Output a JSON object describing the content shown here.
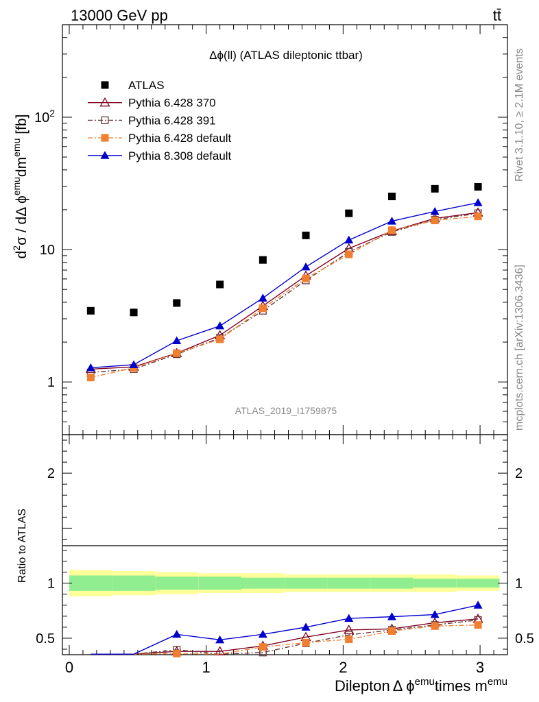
{
  "header": {
    "energy_label": "13000 GeV pp",
    "process_label": "tt̄"
  },
  "side_labels": {
    "rivet": "Rivet 3.1.10, ≥ 2.1M events",
    "mcplots": "mcplots.cern.ch [arXiv:1306.3436]"
  },
  "chart_data": [
    {
      "type": "scatter",
      "title": "Δϕ(ll) (ATLAS dileptonic ttbar)",
      "watermark": "ATLAS_2019_I1759875",
      "ylabel": {
        "main": "d",
        "sup1": "2",
        "mid": "σ / dΔ ϕ",
        "sup2": "emu",
        "mid2": "dm",
        "sup3": "emu",
        "unit": " [fb]"
      },
      "yscale": "log",
      "ylim": [
        0.4,
        500
      ],
      "xlim": [
        -0.05,
        3.2
      ],
      "y_ticks": [
        {
          "value": 1,
          "label": "1"
        },
        {
          "value": 10,
          "label": "10"
        },
        {
          "value": 100,
          "label": "10",
          "sup": "2"
        }
      ],
      "legend_position": "top-left",
      "x": [
        0.157,
        0.471,
        0.785,
        1.1,
        1.414,
        1.728,
        2.042,
        2.356,
        2.67,
        2.985
      ],
      "series": [
        {
          "name": "ATLAS",
          "color": "#000000",
          "marker": "square",
          "line": "none",
          "values": [
            3.45,
            3.35,
            3.95,
            5.45,
            8.35,
            12.8,
            18.8,
            25.2,
            28.8,
            29.8
          ]
        },
        {
          "name": "Pythia 6.428 370",
          "color": "#800020",
          "marker": "triangle-open",
          "line": "solid",
          "values": [
            1.25,
            1.3,
            1.65,
            2.25,
            3.75,
            6.35,
            10.2,
            13.8,
            17.2,
            19.0
          ]
        },
        {
          "name": "Pythia 6.428 391",
          "color": "#6b3a3a",
          "marker": "square-open",
          "line": "dashdot",
          "values": [
            1.18,
            1.25,
            1.62,
            2.15,
            3.45,
            5.85,
            9.6,
            13.6,
            16.8,
            18.8
          ]
        },
        {
          "name": "Pythia 6.428 default",
          "color": "#f08030",
          "marker": "square",
          "line": "dashdot",
          "values": [
            1.08,
            1.28,
            1.65,
            2.1,
            3.6,
            6.05,
            9.2,
            14.0,
            16.6,
            17.8
          ]
        },
        {
          "name": "Pythia 8.308 default",
          "color": "#0000cc",
          "marker": "triangle",
          "line": "solid",
          "values": [
            1.28,
            1.35,
            2.05,
            2.65,
            4.3,
            7.4,
            11.8,
            16.4,
            19.4,
            22.6
          ]
        }
      ]
    },
    {
      "type": "line",
      "ylabel": "Ratio to ATLAS",
      "xlabel": {
        "main": "Dilepton",
        "mid": "Δ ϕ",
        "sup1": "emu",
        "mid2": "times m",
        "sup2": "emu"
      },
      "ylim": [
        0.35,
        2.35
      ],
      "xlim": [
        -0.05,
        3.2
      ],
      "y_ticks": [
        0.5,
        1,
        2
      ],
      "x_ticks": [
        0,
        1,
        2,
        3
      ],
      "x": [
        0.157,
        0.471,
        0.785,
        1.1,
        1.414,
        1.728,
        2.042,
        2.356,
        2.67,
        2.985
      ],
      "band_inner": [
        0.07,
        0.07,
        0.06,
        0.06,
        0.05,
        0.05,
        0.05,
        0.05,
        0.04,
        0.04
      ],
      "band_outer": [
        0.12,
        0.11,
        0.1,
        0.09,
        0.09,
        0.08,
        0.08,
        0.08,
        0.08,
        0.07
      ],
      "series": [
        {
          "name": "Pythia 6.428 370",
          "color": "#800020",
          "line": "solid",
          "values": [
            0.33,
            0.34,
            0.38,
            0.38,
            0.43,
            0.51,
            0.575,
            0.585,
            0.64,
            0.675
          ]
        },
        {
          "name": "Pythia 6.428 391",
          "color": "#6b3a3a",
          "line": "dashdot",
          "values": [
            0.31,
            0.32,
            0.395,
            0.34,
            0.37,
            0.455,
            0.53,
            0.575,
            0.62,
            0.665
          ]
        },
        {
          "name": "Pythia 6.428 default",
          "color": "#f08030",
          "line": "dashdot",
          "values": [
            0.3,
            0.33,
            0.36,
            0.33,
            0.42,
            0.46,
            0.49,
            0.565,
            0.61,
            0.62
          ]
        },
        {
          "name": "Pythia 8.308 default",
          "color": "#0000cc",
          "line": "solid",
          "values": [
            0.32,
            0.34,
            0.535,
            0.485,
            0.535,
            0.6,
            0.68,
            0.695,
            0.715,
            0.8
          ]
        }
      ]
    }
  ]
}
